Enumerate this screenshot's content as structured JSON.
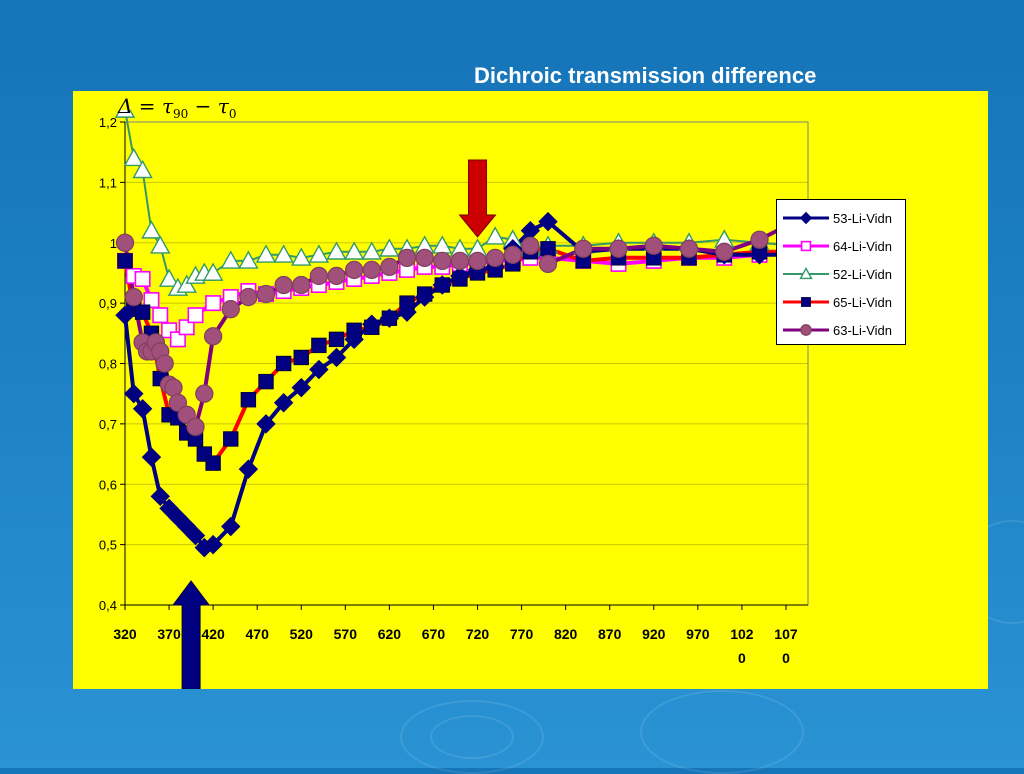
{
  "slide": {
    "title": "Dichroic transmission difference",
    "formula": {
      "delta": "Δ",
      "eq": " = ",
      "tau": "τ",
      "sub_a": "90",
      "minus": " − ",
      "sub_b": "0"
    }
  },
  "colors": {
    "panel": "#ffff00",
    "series_53": "#000080",
    "series_64": "#ff00ff",
    "series_52": "#339966",
    "series_65": "#ff0000",
    "series_63": "#800080",
    "arrow_red": "#cc0000",
    "arrow_blue": "#000080"
  },
  "chart_data": {
    "type": "line",
    "title": "Dichroic transmission difference",
    "xlabel": "",
    "ylabel": "",
    "xlim": [
      320,
      1095
    ],
    "ylim": [
      0.4,
      1.2
    ],
    "y_ticks": [
      "0,4",
      "0,5",
      "0,6",
      "0,7",
      "0,8",
      "0,9",
      "1",
      "1,1",
      "1,2"
    ],
    "x_tick_labels": [
      {
        "x": 320,
        "l1": "320",
        "l2": ""
      },
      {
        "x": 370,
        "l1": "370",
        "l2": ""
      },
      {
        "x": 420,
        "l1": "420",
        "l2": ""
      },
      {
        "x": 470,
        "l1": "470",
        "l2": ""
      },
      {
        "x": 520,
        "l1": "520",
        "l2": ""
      },
      {
        "x": 570,
        "l1": "570",
        "l2": ""
      },
      {
        "x": 620,
        "l1": "620",
        "l2": ""
      },
      {
        "x": 670,
        "l1": "670",
        "l2": ""
      },
      {
        "x": 720,
        "l1": "720",
        "l2": ""
      },
      {
        "x": 770,
        "l1": "770",
        "l2": ""
      },
      {
        "x": 820,
        "l1": "820",
        "l2": ""
      },
      {
        "x": 870,
        "l1": "870",
        "l2": ""
      },
      {
        "x": 920,
        "l1": "920",
        "l2": ""
      },
      {
        "x": 970,
        "l1": "970",
        "l2": ""
      },
      {
        "x": 1020,
        "l1": "102",
        "l2": "0"
      },
      {
        "x": 1070,
        "l1": "107",
        "l2": "0"
      }
    ],
    "grid": "horizontal",
    "legend_position": "right",
    "annotations": [
      {
        "type": "arrow-down",
        "x": 720,
        "color": "red"
      },
      {
        "type": "arrow-up",
        "x": 395,
        "color": "navy"
      }
    ],
    "series": [
      {
        "name": "64-Li-Vidn",
        "marker": "square-open",
        "color": "#ff00ff",
        "x": [
          320,
          330,
          340,
          350,
          360,
          370,
          380,
          390,
          400,
          420,
          440,
          460,
          480,
          500,
          520,
          540,
          560,
          580,
          600,
          620,
          640,
          660,
          680,
          700,
          720,
          740,
          760,
          780,
          800,
          840,
          880,
          920,
          960,
          1000,
          1040,
          1080
        ],
        "y": [
          0.97,
          0.945,
          0.94,
          0.905,
          0.88,
          0.855,
          0.84,
          0.86,
          0.88,
          0.9,
          0.91,
          0.92,
          0.915,
          0.92,
          0.925,
          0.93,
          0.935,
          0.94,
          0.945,
          0.95,
          0.955,
          0.96,
          0.96,
          0.965,
          0.965,
          0.97,
          0.97,
          0.975,
          0.975,
          0.97,
          0.965,
          0.97,
          0.975,
          0.975,
          0.98,
          0.985
        ]
      },
      {
        "name": "52-Li-Vidn",
        "marker": "triangle-open",
        "color": "#339966",
        "x": [
          320,
          330,
          340,
          350,
          360,
          370,
          380,
          390,
          400,
          410,
          420,
          440,
          460,
          480,
          500,
          520,
          540,
          560,
          580,
          600,
          620,
          640,
          660,
          680,
          700,
          720,
          740,
          760,
          780,
          800,
          840,
          880,
          920,
          960,
          1000,
          1040,
          1080
        ],
        "y": [
          1.22,
          1.14,
          1.12,
          1.02,
          0.995,
          0.94,
          0.925,
          0.93,
          0.945,
          0.95,
          0.95,
          0.97,
          0.97,
          0.98,
          0.98,
          0.975,
          0.98,
          0.985,
          0.985,
          0.985,
          0.99,
          0.99,
          0.995,
          0.995,
          0.99,
          0.99,
          1.01,
          1.005,
          0.99,
          0.995,
          0.995,
          1.0,
          1.0,
          1.0,
          1.005,
          1.0,
          0.995
        ]
      },
      {
        "name": "65-Li-Vidn",
        "marker": "square-filled",
        "color": "#ff0000",
        "x": [
          320,
          330,
          340,
          350,
          360,
          370,
          380,
          390,
          400,
          410,
          420,
          440,
          460,
          480,
          500,
          520,
          540,
          560,
          580,
          600,
          620,
          640,
          660,
          680,
          700,
          720,
          740,
          760,
          780,
          800,
          840,
          880,
          920,
          960,
          1000,
          1040,
          1080
        ],
        "y": [
          0.97,
          0.89,
          0.885,
          0.85,
          0.775,
          0.715,
          0.71,
          0.685,
          0.675,
          0.65,
          0.635,
          0.675,
          0.74,
          0.77,
          0.8,
          0.81,
          0.83,
          0.84,
          0.855,
          0.86,
          0.875,
          0.9,
          0.915,
          0.93,
          0.94,
          0.95,
          0.955,
          0.965,
          0.985,
          0.99,
          0.97,
          0.975,
          0.975,
          0.975,
          0.98,
          0.985,
          0.985
        ]
      },
      {
        "name": "53-Li-Vidn",
        "marker": "diamond-filled",
        "color": "#000080",
        "x": [
          320,
          330,
          340,
          350,
          360,
          370,
          380,
          390,
          400,
          410,
          420,
          440,
          460,
          480,
          500,
          520,
          540,
          560,
          580,
          600,
          620,
          640,
          660,
          680,
          700,
          720,
          740,
          760,
          780,
          800,
          840,
          880,
          920,
          960,
          1000,
          1040,
          1080
        ],
        "y": [
          0.88,
          0.75,
          0.725,
          0.645,
          0.58,
          0.56,
          0.545,
          0.53,
          0.515,
          0.495,
          0.5,
          0.53,
          0.625,
          0.7,
          0.735,
          0.76,
          0.79,
          0.81,
          0.84,
          0.865,
          0.875,
          0.885,
          0.91,
          0.93,
          0.945,
          0.955,
          0.96,
          0.99,
          1.02,
          1.035,
          0.985,
          0.99,
          0.99,
          0.99,
          0.98,
          0.98,
          0.98
        ]
      },
      {
        "name": "63-Li-Vidn",
        "marker": "circle-filled",
        "color": "#800080",
        "x": [
          320,
          330,
          340,
          345,
          350,
          355,
          360,
          365,
          370,
          375,
          380,
          390,
          400,
          410,
          420,
          440,
          460,
          480,
          500,
          520,
          540,
          560,
          580,
          600,
          620,
          640,
          660,
          680,
          700,
          720,
          740,
          760,
          780,
          800,
          840,
          880,
          920,
          960,
          1000,
          1040,
          1080
        ],
        "y": [
          1.0,
          0.91,
          0.835,
          0.82,
          0.82,
          0.835,
          0.82,
          0.8,
          0.765,
          0.76,
          0.735,
          0.715,
          0.695,
          0.75,
          0.845,
          0.89,
          0.91,
          0.915,
          0.93,
          0.93,
          0.945,
          0.945,
          0.955,
          0.955,
          0.96,
          0.975,
          0.975,
          0.97,
          0.97,
          0.97,
          0.975,
          0.98,
          0.995,
          0.965,
          0.99,
          0.99,
          0.995,
          0.99,
          0.985,
          1.005,
          1.035
        ]
      }
    ]
  }
}
